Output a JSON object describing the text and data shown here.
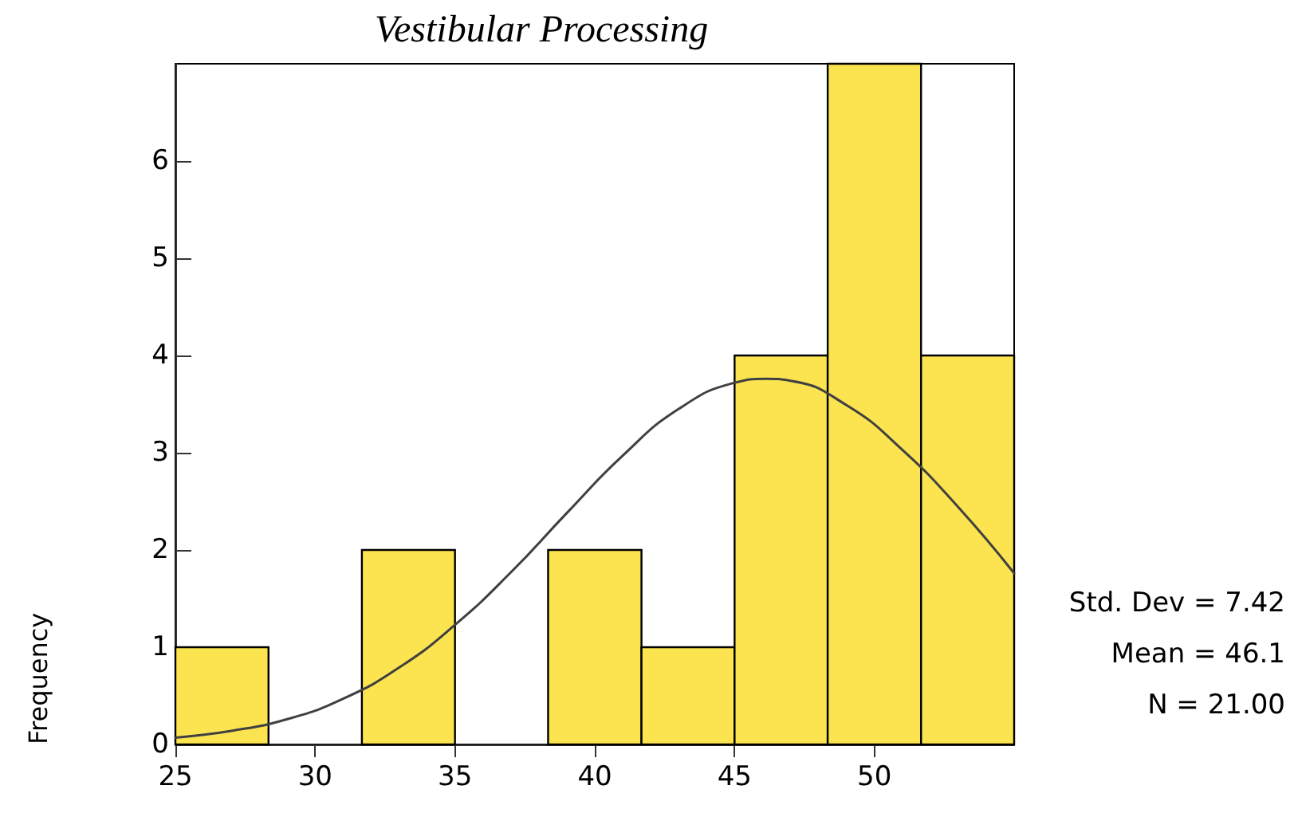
{
  "chart_data": {
    "type": "histogram",
    "title": "Vestibular Processing",
    "ylabel": "Frequency",
    "bins": [
      25,
      28.33,
      31.67,
      35,
      38.33,
      41.67,
      45,
      48.33,
      51.67,
      55
    ],
    "values": [
      1,
      0,
      2,
      0,
      2,
      1,
      4,
      7,
      4
    ],
    "color": "#fbe44f",
    "series": [
      {
        "type": "line",
        "color": "#404040",
        "x": [
          25,
          27,
          29,
          31,
          33,
          35,
          37,
          39,
          41,
          43,
          45,
          46.1,
          47,
          49,
          51,
          53,
          55
        ],
        "values": [
          0.07,
          0.14,
          0.26,
          0.47,
          0.79,
          1.23,
          1.77,
          2.38,
          2.97,
          3.45,
          3.72,
          3.76,
          3.74,
          3.49,
          3.03,
          2.44,
          1.76
        ]
      }
    ],
    "xlim": [
      25,
      55
    ],
    "xticks": [
      25,
      30,
      35,
      40,
      45,
      50
    ],
    "ylim": [
      0,
      7
    ],
    "yticks": [
      0,
      1,
      2,
      3,
      4,
      5,
      6
    ],
    "grid": false,
    "marker": "none",
    "annotations": [
      "Std. Dev = 7.42",
      "Mean = 46.1",
      "N = 21.00"
    ]
  }
}
